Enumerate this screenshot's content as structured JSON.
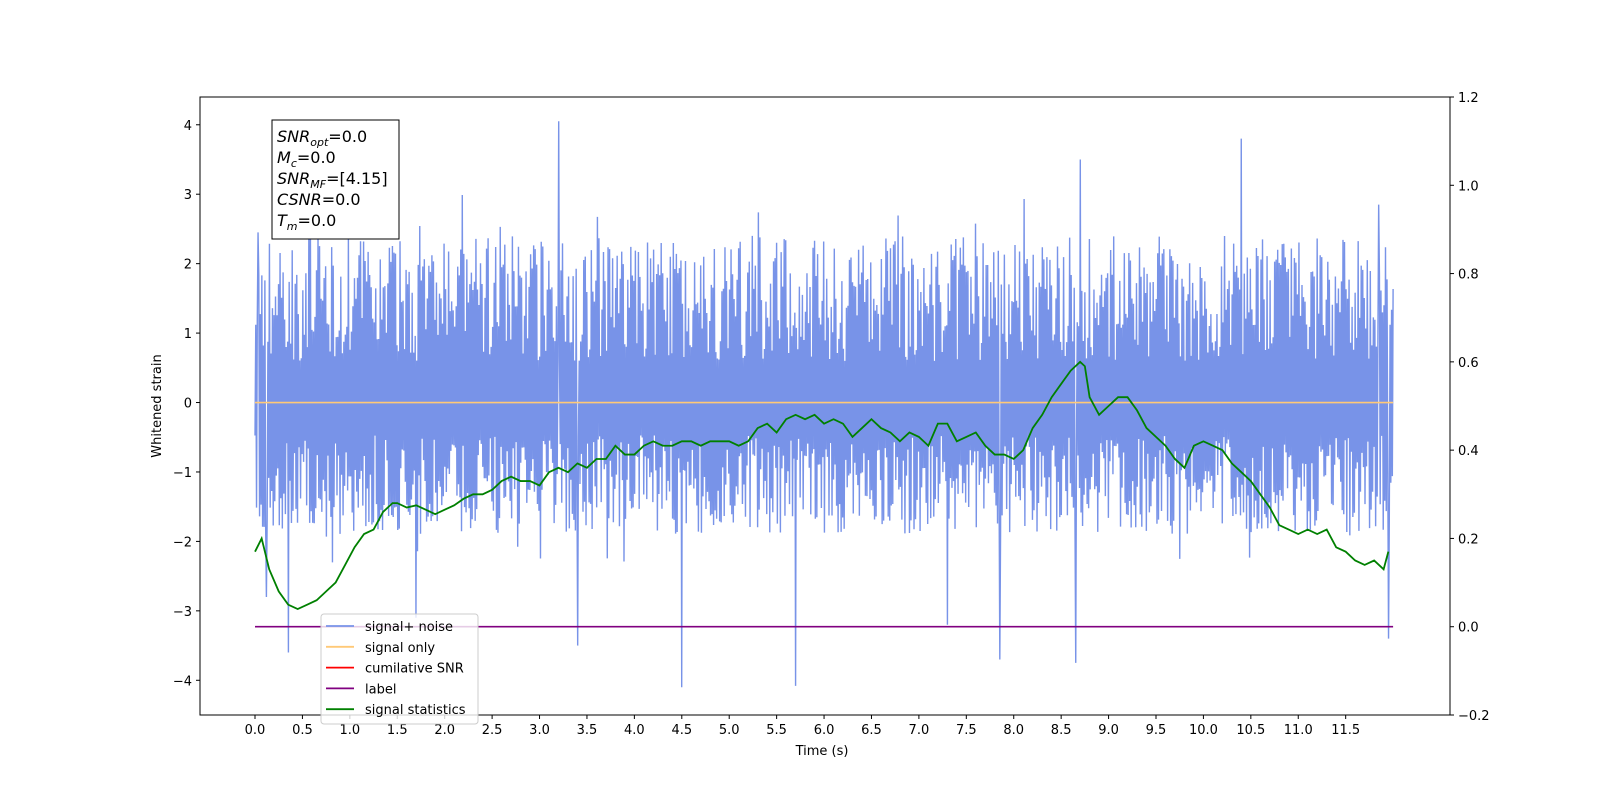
{
  "chart_data": {
    "type": "line",
    "xlabel": "Time (s)",
    "ylabel": "Whitened strain",
    "xlim": [
      -0.58,
      12.6
    ],
    "ylim": [
      -4.5,
      4.4
    ],
    "y2lim": [
      -0.2,
      1.2
    ],
    "grid": false,
    "x_ticks": [
      "0.0",
      "0.5",
      "1.0",
      "1.5",
      "2.0",
      "2.5",
      "3.0",
      "3.5",
      "4.0",
      "4.5",
      "5.0",
      "5.5",
      "6.0",
      "6.5",
      "7.0",
      "7.5",
      "8.0",
      "8.5",
      "9.0",
      "9.5",
      "10.0",
      "10.5",
      "11.0",
      "11.5"
    ],
    "y_ticks": [
      "4",
      "3",
      "2",
      "1",
      "0",
      "−1",
      "−2",
      "−3",
      "−4"
    ],
    "y2_ticks": [
      "1.2",
      "1.0",
      "0.8",
      "0.6",
      "0.4",
      "0.2",
      "0.0",
      "−0.2"
    ],
    "stats_box": [
      {
        "base": "SNR",
        "sub": "opt",
        "rest": "=0.0"
      },
      {
        "base": "M",
        "sub": "c",
        "rest": "=0.0"
      },
      {
        "base": "SNR",
        "sub": "MF",
        "rest": "=[4.15]"
      },
      {
        "base": "CSNR",
        "sub": "",
        "rest": "=0.0"
      },
      {
        "base": "T",
        "sub": "m",
        "rest": "=0.0"
      }
    ],
    "legend": {
      "placement": "lower-left",
      "entries": [
        {
          "label": "signal+ noise",
          "color": "#7893e8"
        },
        {
          "label": "signal only",
          "color": "#ffc977"
        },
        {
          "label": "cumilative SNR",
          "color": "#ff0000"
        },
        {
          "label": "label",
          "color": "#800080"
        },
        {
          "label": "signal statistics",
          "color": "#008000"
        }
      ]
    },
    "series": [
      {
        "name": "signal+ noise",
        "axis": "left",
        "color": "#7893e8",
        "x_range": [
          0.0,
          12.0
        ],
        "note_points": 1500,
        "envelope_typical": [
          -1.9,
          2.4
        ],
        "spikes": [
          [
            0.03,
            2.45
          ],
          [
            0.12,
            -2.8
          ],
          [
            0.35,
            -3.6
          ],
          [
            1.7,
            -3.1
          ],
          [
            3.2,
            4.05
          ],
          [
            3.4,
            -3.5
          ],
          [
            4.5,
            -4.1
          ],
          [
            5.7,
            -4.08
          ],
          [
            7.3,
            -3.2
          ],
          [
            7.85,
            -3.7
          ],
          [
            8.7,
            3.5
          ],
          [
            8.65,
            -3.75
          ],
          [
            10.4,
            3.8
          ],
          [
            11.85,
            2.85
          ],
          [
            11.95,
            -3.4
          ]
        ]
      },
      {
        "name": "signal only",
        "axis": "left",
        "color": "#ffc977",
        "x": [
          0.0,
          12.0
        ],
        "values": [
          0.0,
          0.0
        ]
      },
      {
        "name": "label",
        "axis": "right",
        "color": "#800080",
        "x": [
          0.0,
          12.0
        ],
        "values": [
          0.0,
          0.0
        ]
      },
      {
        "name": "signal statistics",
        "axis": "right",
        "color": "#008000",
        "x": [
          0.0,
          0.07,
          0.15,
          0.25,
          0.35,
          0.45,
          0.55,
          0.65,
          0.75,
          0.85,
          0.95,
          1.05,
          1.15,
          1.25,
          1.35,
          1.45,
          1.5,
          1.6,
          1.7,
          1.8,
          1.9,
          2.0,
          2.1,
          2.2,
          2.3,
          2.4,
          2.5,
          2.6,
          2.7,
          2.8,
          2.9,
          3.0,
          3.1,
          3.2,
          3.3,
          3.4,
          3.5,
          3.6,
          3.7,
          3.8,
          3.9,
          4.0,
          4.1,
          4.2,
          4.3,
          4.4,
          4.5,
          4.6,
          4.7,
          4.8,
          4.9,
          5.0,
          5.1,
          5.2,
          5.3,
          5.4,
          5.5,
          5.6,
          5.7,
          5.8,
          5.9,
          6.0,
          6.1,
          6.2,
          6.3,
          6.4,
          6.5,
          6.6,
          6.7,
          6.8,
          6.9,
          7.0,
          7.1,
          7.2,
          7.3,
          7.4,
          7.5,
          7.6,
          7.7,
          7.8,
          7.9,
          8.0,
          8.1,
          8.2,
          8.3,
          8.4,
          8.5,
          8.6,
          8.7,
          8.75,
          8.8,
          8.9,
          9.0,
          9.1,
          9.2,
          9.3,
          9.4,
          9.5,
          9.6,
          9.7,
          9.8,
          9.9,
          10.0,
          10.1,
          10.2,
          10.3,
          10.4,
          10.5,
          10.6,
          10.7,
          10.8,
          10.9,
          11.0,
          11.1,
          11.2,
          11.3,
          11.4,
          11.5,
          11.6,
          11.7,
          11.8,
          11.9,
          11.95
        ],
        "values": [
          0.17,
          0.2,
          0.13,
          0.08,
          0.05,
          0.04,
          0.05,
          0.06,
          0.08,
          0.1,
          0.14,
          0.18,
          0.21,
          0.22,
          0.26,
          0.28,
          0.28,
          0.27,
          0.275,
          0.265,
          0.255,
          0.265,
          0.275,
          0.29,
          0.3,
          0.3,
          0.31,
          0.33,
          0.34,
          0.33,
          0.33,
          0.32,
          0.35,
          0.36,
          0.35,
          0.37,
          0.36,
          0.38,
          0.38,
          0.41,
          0.39,
          0.39,
          0.41,
          0.42,
          0.41,
          0.41,
          0.42,
          0.42,
          0.41,
          0.42,
          0.42,
          0.42,
          0.41,
          0.42,
          0.45,
          0.46,
          0.44,
          0.47,
          0.48,
          0.47,
          0.48,
          0.46,
          0.47,
          0.46,
          0.43,
          0.45,
          0.47,
          0.45,
          0.44,
          0.42,
          0.44,
          0.43,
          0.41,
          0.46,
          0.46,
          0.42,
          0.43,
          0.44,
          0.41,
          0.39,
          0.39,
          0.38,
          0.4,
          0.45,
          0.48,
          0.52,
          0.55,
          0.58,
          0.6,
          0.59,
          0.52,
          0.48,
          0.5,
          0.52,
          0.52,
          0.49,
          0.45,
          0.43,
          0.41,
          0.38,
          0.36,
          0.41,
          0.42,
          0.41,
          0.4,
          0.37,
          0.35,
          0.33,
          0.3,
          0.27,
          0.23,
          0.22,
          0.21,
          0.22,
          0.21,
          0.22,
          0.18,
          0.17,
          0.15,
          0.14,
          0.15,
          0.13,
          0.17
        ]
      }
    ]
  }
}
